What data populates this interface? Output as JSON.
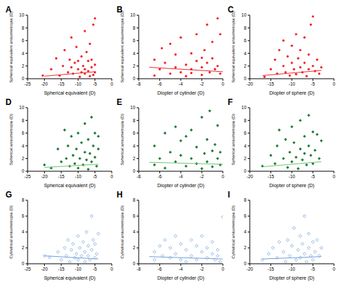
{
  "chart_data": [
    {
      "type": "scatter",
      "title": "A",
      "x_label": "Spherical equivalent (D)",
      "y_label": "Spherical equivalent anisometropia (D)",
      "xlim": [
        -25,
        0
      ],
      "xticks": [
        -25,
        -20,
        -15,
        -10,
        -5,
        0
      ],
      "ylim": [
        0,
        10
      ],
      "yticks": [
        0,
        2,
        4,
        6,
        8,
        10
      ],
      "series": [
        {
          "type": "scatter",
          "color": "#f2262b",
          "marker": "circle",
          "x": [
            -20.5,
            -18,
            -16.5,
            -15.5,
            -14.5,
            -14,
            -13,
            -12.5,
            -12,
            -11.5,
            -11,
            -10.5,
            -10,
            -9.5,
            -9,
            -8.5,
            -8,
            -8,
            -7.5,
            -7,
            -7,
            -6.5,
            -6.5,
            -6,
            -6,
            -5.5,
            -5.5,
            -5,
            -5,
            -5,
            -9,
            -10,
            -8,
            -12
          ],
          "values": [
            0.5,
            1.5,
            3.2,
            0.5,
            2.0,
            4.5,
            1.0,
            3.0,
            6.5,
            0.8,
            2.5,
            5.0,
            1.5,
            0.3,
            3.5,
            2.0,
            7.5,
            0.8,
            4.2,
            1.2,
            2.8,
            0.4,
            5.5,
            1.8,
            3.0,
            8.5,
            0.6,
            9.5,
            2.2,
            1.0,
            1.0,
            2.8,
            1.5,
            1.8
          ]
        },
        {
          "type": "line",
          "color": "#f2262b",
          "line_style": "solid",
          "x": [
            -20,
            -5
          ],
          "values": [
            0.4,
            1.1
          ]
        }
      ]
    },
    {
      "type": "scatter",
      "title": "B",
      "x_label": "Diopter of cylinder (D)",
      "y_label": "Spherical equivalent anisometropia (D)",
      "xlim": [
        -8,
        0
      ],
      "xticks": [
        -8,
        -6,
        -4,
        -2,
        0
      ],
      "ylim": [
        0,
        10
      ],
      "yticks": [
        0,
        2,
        4,
        6,
        8,
        10
      ],
      "series": [
        {
          "type": "scatter",
          "color": "#f2262b",
          "marker": "circle",
          "x": [
            -6.5,
            -6.5,
            -6,
            -5.8,
            -5.5,
            -5,
            -5,
            -4.5,
            -4.5,
            -4,
            -4,
            -3.5,
            -3.5,
            -3,
            -3,
            -2.5,
            -2.5,
            -2,
            -2,
            -1.75,
            -1.5,
            -1.5,
            -1.25,
            -1,
            -1,
            -0.75,
            -0.5,
            -0.5,
            -0.25,
            -0.25,
            -3,
            -2
          ],
          "values": [
            0.5,
            3.0,
            1.5,
            4.8,
            2.5,
            0.8,
            5.5,
            1.8,
            3.8,
            1.0,
            6.5,
            2.2,
            0.4,
            4.0,
            1.5,
            2.8,
            7.0,
            0.6,
            1.8,
            4.5,
            2.5,
            8.5,
            1.0,
            3.2,
            5.8,
            1.5,
            9.5,
            2.0,
            0.8,
            7.0,
            0.9,
            3.3
          ]
        },
        {
          "type": "line",
          "color": "#f2262b",
          "line_style": "solid",
          "x": [
            -7,
            0
          ],
          "values": [
            1.8,
            1.1
          ]
        }
      ]
    },
    {
      "type": "scatter",
      "title": "C",
      "x_label": "Diopter of sphere (D)",
      "y_label": "Spherical equivalent anisometropia (D)",
      "xlim": [
        -20,
        0
      ],
      "xticks": [
        -20,
        -15,
        -10,
        -5,
        0
      ],
      "ylim": [
        0,
        10
      ],
      "yticks": [
        0,
        2,
        4,
        6,
        8,
        10
      ],
      "series": [
        {
          "type": "scatter",
          "color": "#f2262b",
          "marker": "circle",
          "x": [
            -16.5,
            -15,
            -14,
            -13.5,
            -13,
            -12,
            -12,
            -11.5,
            -11,
            -10.5,
            -10,
            -10,
            -9.5,
            -9,
            -9,
            -8.5,
            -8,
            -8,
            -7.5,
            -7,
            -7,
            -6.5,
            -6,
            -6,
            -5.5,
            -5,
            -5,
            -4.5,
            -4,
            -3.5,
            -3
          ],
          "values": [
            0.3,
            1.5,
            3.0,
            0.8,
            4.5,
            2.0,
            6.0,
            1.0,
            3.5,
            0.5,
            2.5,
            5.2,
            1.5,
            7.0,
            0.7,
            3.2,
            1.8,
            4.5,
            1.0,
            2.5,
            6.5,
            0.4,
            3.8,
            1.5,
            8.5,
            2.0,
            9.8,
            1.2,
            3.0,
            0.8,
            1.8
          ]
        },
        {
          "type": "line",
          "color": "#f2262b",
          "line_style": "solid",
          "x": [
            -17,
            -3
          ],
          "values": [
            0.5,
            1.3
          ]
        }
      ]
    },
    {
      "type": "scatter",
      "title": "D",
      "x_label": "Spherical equivalent (D)",
      "y_label": "Spherical anisometropia (D)",
      "xlim": [
        -25,
        0
      ],
      "xticks": [
        -25,
        -20,
        -15,
        -10,
        -5,
        0
      ],
      "ylim": [
        0,
        10
      ],
      "yticks": [
        0,
        2,
        4,
        6,
        8,
        10
      ],
      "series": [
        {
          "type": "scatter",
          "color": "#1f7d35",
          "marker": "diamond",
          "x": [
            -20,
            -18,
            -16,
            -15,
            -14,
            -13.5,
            -13,
            -12.5,
            -12,
            -11.5,
            -11,
            -10.5,
            -10,
            -10,
            -9.5,
            -9,
            -8.5,
            -8,
            -8,
            -7.5,
            -7,
            -7,
            -6.5,
            -6,
            -6,
            -5.5,
            -5,
            -5,
            -4.5,
            -4,
            -4
          ],
          "values": [
            1.0,
            0.5,
            3.5,
            1.5,
            6.5,
            2.0,
            4.0,
            0.8,
            5.5,
            2.5,
            1.2,
            3.5,
            0.5,
            6.0,
            2.0,
            4.5,
            1.0,
            3.0,
            7.5,
            1.8,
            5.0,
            0.3,
            2.8,
            8.5,
            1.5,
            4.0,
            6.0,
            2.2,
            0.8,
            3.5,
            5.5
          ]
        },
        {
          "type": "line",
          "color": "#6cc46f",
          "line_style": "solid",
          "x": [
            -20,
            -4
          ],
          "values": [
            0.6,
            1.1
          ]
        }
      ]
    },
    {
      "type": "scatter",
      "title": "E",
      "x_label": "Diopter of cylinder (D)",
      "y_label": "Spherical anisometropia (D)",
      "xlim": [
        -8,
        0
      ],
      "xticks": [
        -8,
        -6,
        -4,
        -2,
        0
      ],
      "ylim": [
        0,
        10
      ],
      "yticks": [
        0,
        2,
        4,
        6,
        8,
        10
      ],
      "series": [
        {
          "type": "scatter",
          "color": "#1f7d35",
          "marker": "diamond",
          "x": [
            -6.5,
            -6.5,
            -6,
            -5.5,
            -5.5,
            -5,
            -4.5,
            -4.5,
            -4,
            -4,
            -3.5,
            -3.5,
            -3,
            -3,
            -2.5,
            -2.5,
            -2,
            -2,
            -1.75,
            -1.5,
            -1.5,
            -1.25,
            -1,
            -1,
            -0.75,
            -0.5,
            -0.5,
            -0.25,
            -0.25
          ],
          "values": [
            1.0,
            4.0,
            2.0,
            6.0,
            0.5,
            3.0,
            1.5,
            7.0,
            2.5,
            4.8,
            0.8,
            5.5,
            2.0,
            6.5,
            1.2,
            3.8,
            8.5,
            0.4,
            2.8,
            5.0,
            1.5,
            9.5,
            3.2,
            0.7,
            4.2,
            2.0,
            7.2,
            1.0,
            3.0
          ]
        },
        {
          "type": "line",
          "color": "#6cc46f",
          "line_style": "solid",
          "x": [
            -7,
            0
          ],
          "values": [
            1.4,
            1.1
          ]
        }
      ]
    },
    {
      "type": "scatter",
      "title": "F",
      "x_label": "Diopter of sphere (D)",
      "y_label": "Spherical anisometropia (D)",
      "xlim": [
        -20,
        0
      ],
      "xticks": [
        -20,
        -15,
        -10,
        -5,
        0
      ],
      "ylim": [
        0,
        10
      ],
      "yticks": [
        0,
        2,
        4,
        6,
        8,
        10
      ],
      "series": [
        {
          "type": "scatter",
          "color": "#1f7d35",
          "marker": "diamond",
          "x": [
            -17,
            -15,
            -14,
            -13.5,
            -13,
            -12,
            -11.5,
            -11,
            -10.5,
            -10,
            -10,
            -9.5,
            -9,
            -8.5,
            -8,
            -8,
            -7.5,
            -7,
            -7,
            -6.5,
            -6,
            -6,
            -5.5,
            -5,
            -5,
            -4.5,
            -4,
            -3.5,
            -3
          ],
          "values": [
            0.8,
            2.5,
            1.2,
            4.0,
            6.5,
            2.0,
            5.0,
            0.6,
            3.0,
            7.0,
            1.5,
            4.5,
            2.2,
            0.4,
            3.5,
            8.0,
            1.8,
            5.5,
            2.8,
            1.0,
            4.0,
            8.8,
            2.5,
            6.2,
            1.2,
            3.3,
            5.8,
            2.0,
            4.8
          ]
        },
        {
          "type": "line",
          "color": "#6cc46f",
          "line_style": "solid",
          "x": [
            -17,
            -3
          ],
          "values": [
            0.7,
            1.5
          ]
        }
      ]
    },
    {
      "type": "scatter",
      "title": "G",
      "x_label": "Spherical equivalent (D)",
      "y_label": "Cylindrical anisometropia (D)",
      "xlim": [
        -25,
        0
      ],
      "xticks": [
        -25,
        -20,
        -15,
        -10,
        -5,
        0
      ],
      "ylim": [
        0,
        8
      ],
      "yticks": [
        0,
        2,
        4,
        6,
        8
      ],
      "series": [
        {
          "type": "scatter",
          "color": "#6fa0dc",
          "marker": "open_diamond",
          "x": [
            -20,
            -18.5,
            -16,
            -15,
            -14,
            -13.5,
            -13,
            -12.5,
            -12,
            -11.5,
            -11,
            -10.5,
            -10,
            -10,
            -9.5,
            -9,
            -8.5,
            -8,
            -8,
            -7.5,
            -7,
            -7,
            -6.5,
            -6,
            -6,
            -5.5,
            -5,
            -5,
            -4.5,
            -4
          ],
          "values": [
            1.0,
            0.8,
            1.5,
            0.5,
            2.0,
            1.0,
            3.0,
            0.25,
            1.75,
            2.5,
            0.75,
            1.25,
            3.5,
            0.5,
            2.0,
            1.0,
            2.75,
            0.25,
            1.5,
            4.0,
            1.0,
            2.25,
            0.5,
            6.0,
            1.75,
            3.0,
            0.75,
            2.5,
            1.25,
            3.8
          ]
        },
        {
          "type": "line",
          "color": "#6fa0dc",
          "line_style": "solid",
          "x": [
            -20,
            -4
          ],
          "values": [
            1.0,
            0.6
          ]
        }
      ]
    },
    {
      "type": "scatter",
      "title": "H",
      "x_label": "Diopter of cylinder (D)",
      "y_label": "Cylindrical anisometropia (D)",
      "xlim": [
        -8,
        0
      ],
      "xticks": [
        -8,
        -6,
        -4,
        -2,
        0
      ],
      "ylim": [
        0,
        8
      ],
      "yticks": [
        0,
        2,
        4,
        6,
        8
      ],
      "series": [
        {
          "type": "scatter",
          "color": "#6fa0dc",
          "marker": "open_diamond",
          "x": [
            -6.5,
            -6.5,
            -6,
            -5.75,
            -5.5,
            -5,
            -5,
            -4.5,
            -4.5,
            -4,
            -4,
            -3.5,
            -3.5,
            -3,
            -3,
            -2.5,
            -2.5,
            -2,
            -2,
            -1.5,
            -1.5,
            -1,
            -1,
            -0.75,
            -0.5,
            -0.25,
            0,
            -0.5
          ],
          "values": [
            0.5,
            1.5,
            2.25,
            1.0,
            3.0,
            0.75,
            2.0,
            1.25,
            3.5,
            0.5,
            2.5,
            1.75,
            0.25,
            3.0,
            1.0,
            2.25,
            0.5,
            1.5,
            3.5,
            0.75,
            2.0,
            1.25,
            2.75,
            0.5,
            1.75,
            0.25,
            5.9,
            1.0
          ]
        },
        {
          "type": "line",
          "color": "#6fa0dc",
          "line_style": "solid",
          "x": [
            -7,
            0
          ],
          "values": [
            0.9,
            0.6
          ]
        }
      ]
    },
    {
      "type": "scatter",
      "title": "I",
      "x_label": "Diopter of sphere (D)",
      "y_label": "Cylindrical anisometropia (D)",
      "xlim": [
        -20,
        0
      ],
      "xticks": [
        -20,
        -15,
        -10,
        -5,
        0
      ],
      "ylim": [
        0,
        8
      ],
      "yticks": [
        0,
        2,
        4,
        6,
        8
      ],
      "series": [
        {
          "type": "scatter",
          "color": "#6fa0dc",
          "marker": "open_diamond",
          "x": [
            -17,
            -15.5,
            -14.5,
            -13.5,
            -13,
            -12,
            -11.5,
            -11,
            -10.5,
            -10,
            -9.5,
            -9,
            -8.5,
            -8,
            -8,
            -7.5,
            -7,
            -7,
            -6.5,
            -6,
            -6,
            -5.5,
            -5,
            -5,
            -4.5,
            -4,
            -3.5,
            -3
          ],
          "values": [
            0.5,
            1.25,
            2.0,
            0.75,
            2.75,
            1.5,
            0.25,
            3.0,
            1.0,
            2.25,
            4.5,
            0.5,
            1.75,
            3.5,
            0.75,
            2.5,
            1.25,
            6.0,
            0.25,
            2.0,
            3.8,
            1.0,
            2.75,
            0.5,
            1.5,
            3.0,
            1.0,
            2.0
          ]
        },
        {
          "type": "line",
          "color": "#6fa0dc",
          "line_style": "solid",
          "x": [
            -17,
            -3
          ],
          "values": [
            0.6,
            0.9
          ]
        }
      ]
    }
  ]
}
